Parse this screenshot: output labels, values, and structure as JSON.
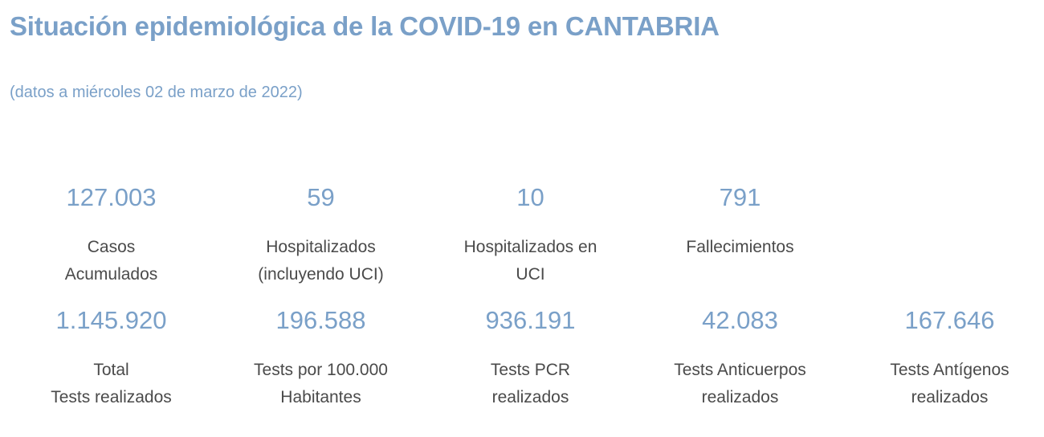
{
  "header": {
    "title": "Situación epidemiológica de la COVID-19 en CANTABRIA",
    "subtitle": "(datos a miércoles 02 de marzo de 2022)"
  },
  "stats_row1": [
    {
      "value": "127.003",
      "label_line1": "Casos",
      "label_line2": "Acumulados"
    },
    {
      "value": "59",
      "label_line1": "Hospitalizados",
      "label_line2": "(incluyendo UCI)"
    },
    {
      "value": "10",
      "label_line1": "Hospitalizados en",
      "label_line2": "UCI"
    },
    {
      "value": "791",
      "label_line1": "Fallecimientos",
      "label_line2": ""
    }
  ],
  "stats_row2": [
    {
      "value": "1.145.920",
      "label_line1": "Total",
      "label_line2": "Tests realizados"
    },
    {
      "value": "196.588",
      "label_line1": "Tests por 100.000",
      "label_line2": "Habitantes"
    },
    {
      "value": "936.191",
      "label_line1": "Tests PCR",
      "label_line2": "realizados"
    },
    {
      "value": "42.083",
      "label_line1": "Tests Anticuerpos",
      "label_line2": "realizados"
    },
    {
      "value": "167.646",
      "label_line1": "Tests Antígenos",
      "label_line2": "realizados"
    }
  ],
  "colors": {
    "accent": "#7aa0c8",
    "text": "#4a4a4a"
  }
}
